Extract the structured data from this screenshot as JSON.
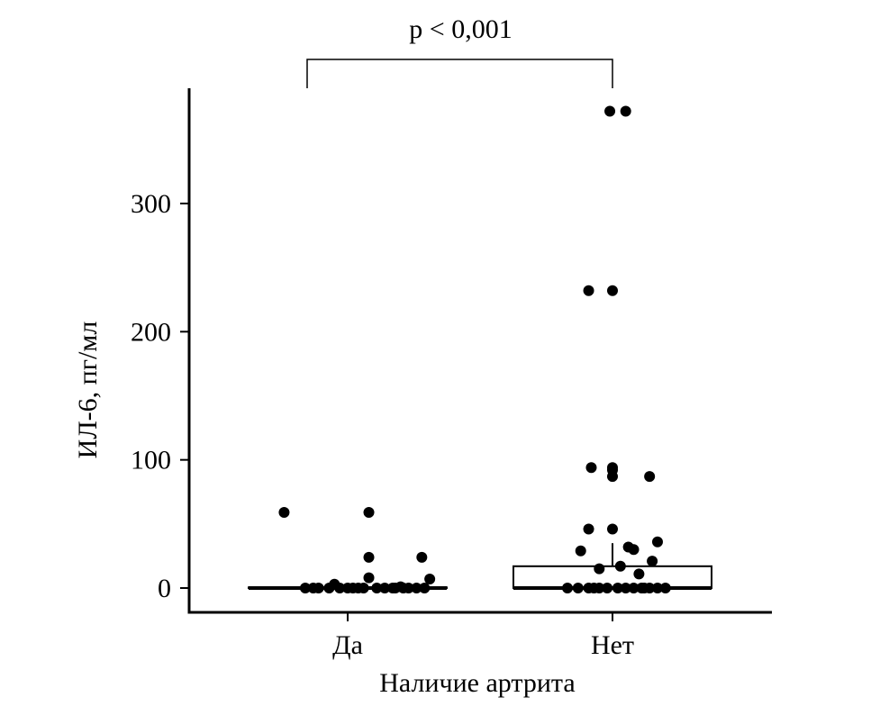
{
  "chart_data": {
    "type": "box-jitter",
    "xlabel": "Наличие артрита",
    "ylabel": "ИЛ-6, пг/мл",
    "categories": [
      "Да",
      "Нет"
    ],
    "ylim": [
      -18,
      390
    ],
    "yticks": [
      0,
      100,
      200,
      300
    ],
    "grid": false,
    "boxes": [
      {
        "category": "Да",
        "q1": 0,
        "median": 0,
        "q3": 0.5,
        "whisker_low": 0,
        "whisker_high": 0.5
      },
      {
        "category": "Нет",
        "q1": 0,
        "median": 0,
        "q3": 17,
        "whisker_low": 0,
        "whisker_high": 35
      }
    ],
    "points": [
      {
        "category": "Да",
        "values": [
          59,
          59,
          24,
          24,
          8,
          7,
          3,
          1,
          0,
          0,
          0,
          0,
          0,
          0,
          0,
          0,
          0,
          0,
          0,
          0,
          0,
          0,
          0,
          0,
          0
        ],
        "offsets": [
          -0.24,
          0.08,
          0.08,
          0.28,
          0.08,
          0.31,
          -0.05,
          0.2,
          -0.16,
          -0.11,
          -0.07,
          -0.03,
          0.0,
          0.04,
          0.11,
          0.14,
          0.17,
          0.21,
          0.23,
          0.26,
          0.29,
          -0.13,
          0.02,
          0.06,
          0.18
        ]
      },
      {
        "category": "Нет",
        "values": [
          372,
          372,
          232,
          232,
          94,
          94,
          92,
          87,
          87,
          46,
          46,
          36,
          32,
          30,
          29,
          21,
          17,
          15,
          11,
          0,
          0,
          0,
          0,
          0,
          0,
          0,
          0,
          0,
          0,
          0,
          0,
          0,
          0
        ],
        "offsets": [
          -0.01,
          0.05,
          -0.09,
          0.0,
          -0.08,
          0.0,
          0.0,
          0.0,
          0.14,
          -0.09,
          0.0,
          0.17,
          0.06,
          0.08,
          -0.12,
          0.15,
          0.03,
          -0.05,
          0.1,
          -0.17,
          -0.13,
          -0.09,
          -0.05,
          -0.02,
          0.02,
          0.05,
          0.08,
          0.11,
          0.14,
          0.17,
          -0.07,
          0.12,
          0.2
        ]
      }
    ],
    "annotation": {
      "text": "p < 0,001",
      "from": "Да",
      "to": "Нет"
    }
  }
}
